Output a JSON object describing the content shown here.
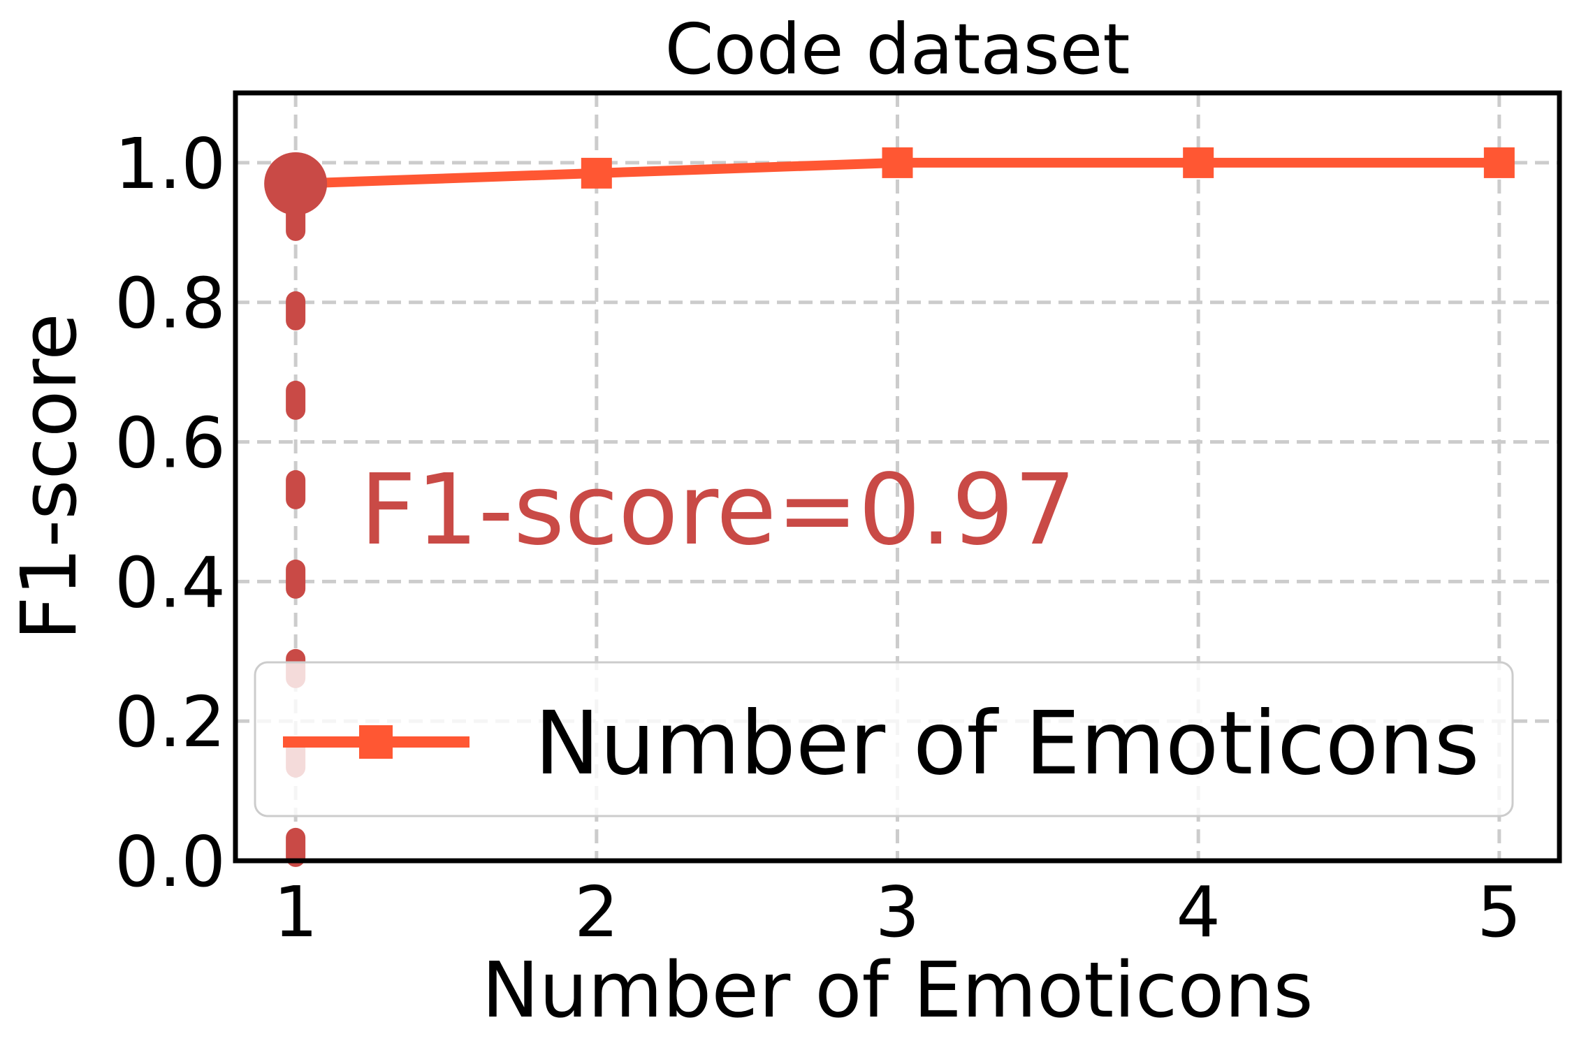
{
  "chart_data": {
    "type": "line",
    "title": "Code dataset",
    "xlabel": "Number of Emoticons",
    "ylabel": "F1-score",
    "x": [
      1,
      2,
      3,
      4,
      5
    ],
    "x_tick_labels": [
      "1",
      "2",
      "3",
      "4",
      "5"
    ],
    "y_tick_labels": [
      "0.0",
      "0.2",
      "0.4",
      "0.6",
      "0.8",
      "1.0"
    ],
    "y_ticks": [
      0.0,
      0.2,
      0.4,
      0.6,
      0.8,
      1.0
    ],
    "xlim": [
      0.8,
      5.2
    ],
    "ylim": [
      0.0,
      1.1
    ],
    "grid": true,
    "series": [
      {
        "name": "Number of Emoticons",
        "x": [
          1,
          2,
          3,
          4,
          5
        ],
        "values": [
          0.97,
          0.985,
          1.0,
          1.0,
          1.0
        ],
        "color": "#ff5733",
        "marker": "square"
      }
    ],
    "highlight": {
      "x": 1,
      "y": 0.97,
      "color": "#c94a46",
      "label": "F1-score=0.97"
    },
    "legend": {
      "position": "lower-right",
      "entries": [
        "Number of Emoticons"
      ]
    }
  }
}
